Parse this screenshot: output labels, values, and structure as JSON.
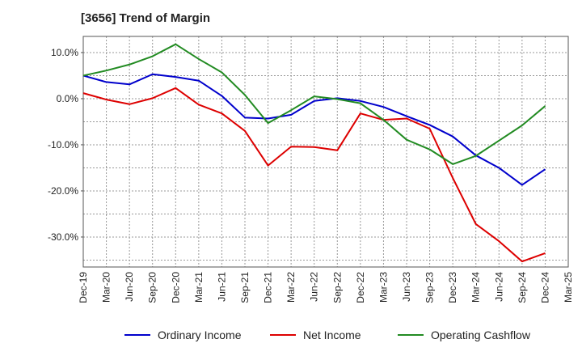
{
  "chart_data": {
    "type": "line",
    "title": "[3656]  Trend of Margin",
    "xlabel": "",
    "ylabel": "",
    "x": [
      "Dec-19",
      "Mar-20",
      "Jun-20",
      "Sep-20",
      "Dec-20",
      "Mar-21",
      "Jun-21",
      "Sep-21",
      "Dec-21",
      "Mar-22",
      "Jun-22",
      "Sep-22",
      "Dec-22",
      "Mar-23",
      "Jun-23",
      "Sep-23",
      "Dec-23",
      "Mar-24",
      "Jun-24",
      "Sep-24",
      "Dec-24",
      "Mar-25"
    ],
    "ylim": [
      -36.5,
      13.5
    ],
    "yticks": [
      10,
      0,
      -10,
      -20,
      -30
    ],
    "ytick_labels": [
      "10.0%",
      "0.0%",
      "-10.0%",
      "-20.0%",
      "-30.0%"
    ],
    "grid": true,
    "legend_position": "bottom",
    "series": [
      {
        "name": "Ordinary Income",
        "color": "#0000cc",
        "values": [
          5.0,
          3.6,
          3.1,
          5.3,
          4.7,
          3.9,
          0.6,
          -4.1,
          -4.3,
          -3.5,
          -0.5,
          0.1,
          -0.5,
          -1.8,
          -3.8,
          -5.7,
          -8.2,
          -12.3,
          -15.0,
          -18.7,
          -15.3,
          null
        ]
      },
      {
        "name": "Net Income",
        "color": "#dd0000",
        "values": [
          1.2,
          -0.2,
          -1.2,
          0.1,
          2.3,
          -1.3,
          -3.2,
          -7.0,
          -14.5,
          -10.4,
          -10.5,
          -11.2,
          -3.2,
          -4.6,
          -4.3,
          -6.5,
          -17.2,
          -27.2,
          -30.9,
          -35.3,
          -33.5,
          null
        ]
      },
      {
        "name": "Operating Cashflow",
        "color": "#228b22",
        "values": [
          5.0,
          6.1,
          7.4,
          9.2,
          11.8,
          8.6,
          5.7,
          0.8,
          -5.3,
          -2.5,
          0.5,
          -0.1,
          -1.0,
          -4.6,
          -8.9,
          -11.0,
          -14.2,
          -12.4,
          -9.1,
          -5.8,
          -1.6,
          null
        ]
      }
    ]
  }
}
